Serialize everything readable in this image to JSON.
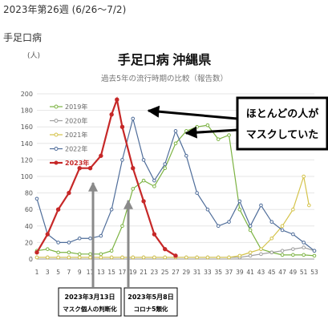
{
  "header": {
    "week_label": "2023年第26週 (6/26～7/2)",
    "disease": "手足口病"
  },
  "chart_data": {
    "type": "line",
    "title": "手足口病 沖縄県",
    "subtitle": "過去5年の流行時期の比較（報告数）",
    "ylabel": "(人)",
    "ylim": [
      0,
      200
    ],
    "yticks": [
      0,
      20,
      40,
      60,
      80,
      100,
      120,
      140,
      160,
      180,
      200
    ],
    "xticks": [
      1,
      3,
      5,
      7,
      9,
      11,
      13,
      15,
      17,
      19,
      21,
      23,
      25,
      27,
      29,
      31,
      33,
      35,
      37,
      39,
      41,
      43,
      45,
      47,
      49,
      51,
      53
    ],
    "xlim": [
      1,
      53
    ],
    "grid": "horizontal",
    "legend_position": "top-left",
    "colors": {
      "2019": "#7cb342",
      "2020": "#9e9e9e",
      "2021": "#d4c34a",
      "2022": "#4f6d9a",
      "2023": "#c62828",
      "axis": "#999999",
      "arrow_gray": "#8a8a8a"
    },
    "series": [
      {
        "name": "2019年",
        "x": [
          1,
          3,
          5,
          7,
          9,
          11,
          13,
          15,
          17,
          19,
          21,
          23,
          25,
          27,
          29,
          31,
          33,
          35,
          37,
          39,
          41,
          43,
          45,
          47,
          49,
          51,
          53
        ],
        "values": [
          10,
          12,
          8,
          8,
          6,
          6,
          6,
          10,
          40,
          85,
          95,
          88,
          110,
          140,
          155,
          160,
          162,
          145,
          150,
          60,
          35,
          12,
          8,
          5,
          5,
          5,
          4
        ]
      },
      {
        "name": "2020年",
        "x": [
          1,
          3,
          5,
          7,
          9,
          11,
          13,
          15,
          17,
          19,
          21,
          23,
          25,
          27,
          29,
          31,
          33,
          35,
          37,
          39,
          41,
          43,
          45,
          47,
          49,
          51,
          53
        ],
        "values": [
          2,
          2,
          2,
          2,
          2,
          2,
          2,
          2,
          2,
          2,
          2,
          2,
          2,
          2,
          2,
          2,
          2,
          2,
          2,
          2,
          4,
          6,
          8,
          10,
          12,
          14,
          10
        ]
      },
      {
        "name": "2021年",
        "x": [
          1,
          3,
          5,
          7,
          9,
          11,
          13,
          15,
          17,
          19,
          21,
          23,
          25,
          27,
          29,
          31,
          33,
          35,
          37,
          39,
          41,
          43,
          45,
          47,
          49,
          51,
          52
        ],
        "values": [
          2,
          2,
          2,
          2,
          2,
          2,
          2,
          2,
          2,
          2,
          2,
          2,
          2,
          2,
          2,
          2,
          2,
          2,
          2,
          4,
          8,
          12,
          25,
          40,
          60,
          100,
          65
        ]
      },
      {
        "name": "2022年",
        "x": [
          1,
          3,
          5,
          7,
          9,
          11,
          13,
          15,
          17,
          19,
          21,
          23,
          25,
          27,
          29,
          31,
          33,
          35,
          37,
          39,
          41,
          43,
          45,
          47,
          49,
          51,
          53
        ],
        "values": [
          73,
          30,
          20,
          20,
          25,
          25,
          28,
          60,
          120,
          170,
          120,
          95,
          115,
          155,
          125,
          80,
          60,
          40,
          45,
          70,
          40,
          65,
          45,
          35,
          30,
          20,
          10
        ]
      },
      {
        "name": "2023年",
        "x": [
          1,
          3,
          5,
          7,
          9,
          11,
          13,
          15,
          16,
          17,
          19,
          21,
          23,
          25,
          27
        ],
        "values": [
          8,
          30,
          60,
          80,
          110,
          110,
          125,
          175,
          193,
          160,
          110,
          70,
          30,
          12,
          4
        ]
      }
    ],
    "annotations": {
      "callout": [
        "ほとんどの人が",
        "マスクしていた"
      ],
      "event1": [
        "2023年3月13日",
        "マスク個人の判断化"
      ],
      "event2": [
        "2023年5月8日",
        "コロナ5類化"
      ]
    }
  }
}
